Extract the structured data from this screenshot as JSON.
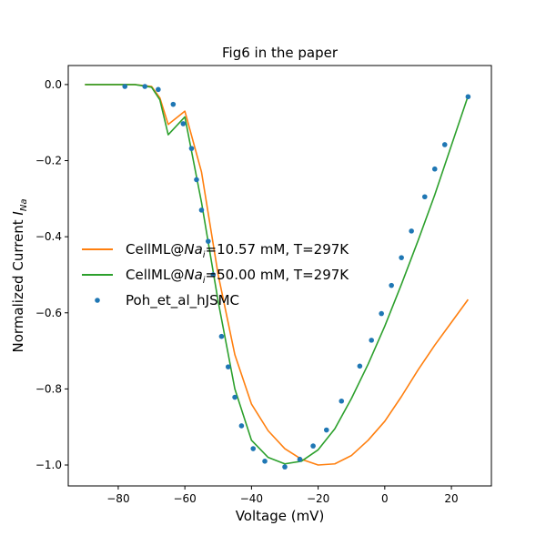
{
  "chart_data": {
    "type": "line",
    "title": "Fig6 in the paper",
    "xlabel": "Voltage (mV)",
    "ylabel": "Normalized Current I_Na",
    "ylabel_parts": {
      "main": "Normalized Current ",
      "italic": "I",
      "sub": "Na"
    },
    "xlim": [
      -95,
      32
    ],
    "ylim": [
      -1.055,
      0.05
    ],
    "xticks": [
      -80,
      -60,
      -40,
      -20,
      0,
      20
    ],
    "xtick_labels": [
      "−80",
      "−60",
      "−40",
      "−20",
      "0",
      "20"
    ],
    "yticks": [
      0.0,
      -0.2,
      -0.4,
      -0.6,
      -0.8,
      -1.0
    ],
    "ytick_labels": [
      "0.0",
      "−0.2",
      "−0.4",
      "−0.6",
      "−0.8",
      "−1.0"
    ],
    "legend_position": "center-left",
    "grid": false,
    "series": [
      {
        "name": "CellML@Na_i=10.57 mM, T=297K",
        "legend_parts": {
          "pre": "CellML@",
          "italic": "Na",
          "sub": "i",
          "post": "=10.57 mM, T=297K"
        },
        "kind": "line",
        "color": "#ff7f0e",
        "x": [
          -90,
          -85,
          -80,
          -75,
          -70,
          -67.5,
          -65,
          -60,
          -55,
          -50,
          -45,
          -40,
          -35,
          -30,
          -25,
          -20,
          -15,
          -10,
          -5,
          0,
          5,
          10,
          15,
          20,
          25
        ],
        "y": [
          0.0,
          0.0,
          0.0,
          0.0,
          -0.005,
          -0.035,
          -0.105,
          -0.07,
          -0.23,
          -0.5,
          -0.71,
          -0.84,
          -0.91,
          -0.957,
          -0.985,
          -1.0,
          -0.997,
          -0.975,
          -0.935,
          -0.885,
          -0.82,
          -0.75,
          -0.685,
          -0.625,
          -0.565
        ]
      },
      {
        "name": "CellML@Na_i=50.00 mM, T=297K",
        "legend_parts": {
          "pre": "CellML@",
          "italic": "Na",
          "sub": "i",
          "post": "=50.00 mM, T=297K"
        },
        "kind": "line",
        "color": "#2ca02c",
        "x": [
          -90,
          -85,
          -80,
          -75,
          -70,
          -67.5,
          -65,
          -60,
          -55,
          -50,
          -45,
          -40,
          -35,
          -30,
          -25,
          -20,
          -15,
          -10,
          -5,
          0,
          5,
          10,
          15,
          20,
          25
        ],
        "y": [
          0.0,
          0.0,
          0.0,
          0.0,
          -0.007,
          -0.04,
          -0.132,
          -0.085,
          -0.31,
          -0.57,
          -0.8,
          -0.935,
          -0.98,
          -0.997,
          -0.99,
          -0.96,
          -0.905,
          -0.825,
          -0.735,
          -0.635,
          -0.525,
          -0.41,
          -0.29,
          -0.16,
          -0.03
        ]
      },
      {
        "name": "Poh_et_al_hJSMC",
        "kind": "scatter",
        "color": "#1f77b4",
        "x": [
          -78,
          -72,
          -68,
          -63.5,
          -60.5,
          -58,
          -56.5,
          -55,
          -53,
          -51.5,
          -49,
          -47,
          -45,
          -43,
          -39.5,
          -36,
          -30,
          -25.5,
          -21.5,
          -17.5,
          -13,
          -7.5,
          -4,
          -1,
          2,
          5,
          8,
          12,
          15,
          18,
          25
        ],
        "y": [
          -0.005,
          -0.005,
          -0.013,
          -0.052,
          -0.103,
          -0.168,
          -0.25,
          -0.33,
          -0.412,
          -0.5,
          -0.662,
          -0.742,
          -0.822,
          -0.897,
          -0.957,
          -0.99,
          -1.005,
          -0.985,
          -0.95,
          -0.908,
          -0.832,
          -0.74,
          -0.672,
          -0.602,
          -0.528,
          -0.455,
          -0.385,
          -0.295,
          -0.222,
          -0.158,
          -0.032
        ]
      }
    ]
  }
}
